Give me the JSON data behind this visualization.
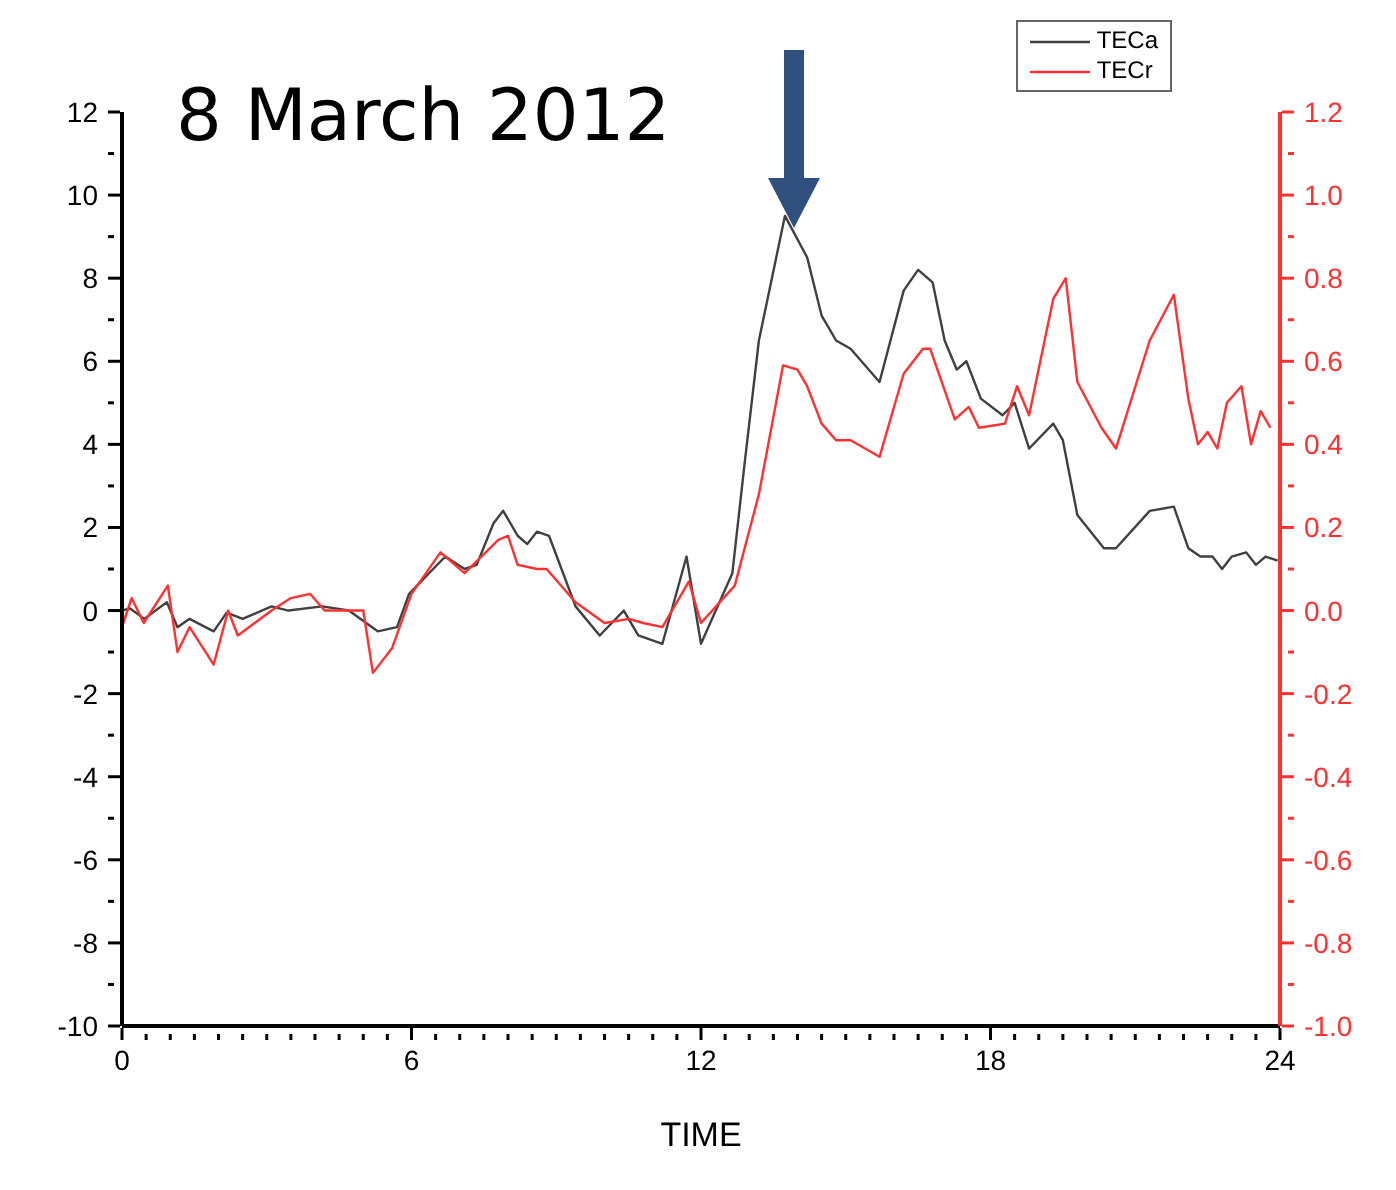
{
  "chart_data": {
    "type": "line",
    "title": "8 March 2012",
    "xlabel": "TIME",
    "xlim": [
      0,
      24
    ],
    "xticks": [
      0,
      {
        "value": 0.5,
        "label": null
      },
      {
        "value": 1,
        "label": null
      },
      {
        "value": 1.5,
        "label": null
      },
      {
        "value": 2,
        "label": null
      },
      {
        "value": 2.5,
        "label": null
      },
      {
        "value": 3,
        "label": null
      },
      {
        "value": 3.5,
        "label": null
      },
      {
        "value": 4,
        "label": null
      },
      {
        "value": 4.5,
        "label": null
      },
      {
        "value": 5,
        "label": null
      },
      {
        "value": 5.5,
        "label": null
      },
      6,
      {
        "value": 6.5,
        "label": null
      },
      {
        "value": 7,
        "label": null
      },
      {
        "value": 7.5,
        "label": null
      },
      {
        "value": 8,
        "label": null
      },
      {
        "value": 8.5,
        "label": null
      },
      {
        "value": 9,
        "label": null
      },
      {
        "value": 9.5,
        "label": null
      },
      {
        "value": 10,
        "label": null
      },
      {
        "value": 10.5,
        "label": null
      },
      {
        "value": 11,
        "label": null
      },
      {
        "value": 11.5,
        "label": null
      },
      12,
      {
        "value": 12.5,
        "label": null
      },
      {
        "value": 13,
        "label": null
      },
      {
        "value": 13.5,
        "label": null
      },
      {
        "value": 14,
        "label": null
      },
      {
        "value": 14.5,
        "label": null
      },
      {
        "value": 15,
        "label": null
      },
      {
        "value": 15.5,
        "label": null
      },
      {
        "value": 16,
        "label": null
      },
      {
        "value": 16.5,
        "label": null
      },
      {
        "value": 17,
        "label": null
      },
      {
        "value": 17.5,
        "label": null
      },
      18,
      {
        "value": 18.5,
        "label": null
      },
      {
        "value": 19,
        "label": null
      },
      {
        "value": 19.5,
        "label": null
      },
      {
        "value": 20,
        "label": null
      },
      {
        "value": 20.5,
        "label": null
      },
      {
        "value": 21,
        "label": null
      },
      {
        "value": 21.5,
        "label": null
      },
      {
        "value": 22,
        "label": null
      },
      {
        "value": 22.5,
        "label": null
      },
      {
        "value": 23,
        "label": null
      },
      {
        "value": 23.5,
        "label": null
      },
      24
    ],
    "ylim": [
      -10,
      12
    ],
    "yticks": [
      -10,
      {
        "value": -9,
        "label": null
      },
      -8,
      {
        "value": -7,
        "label": null
      },
      -6,
      {
        "value": -5,
        "label": null
      },
      -4,
      {
        "value": -3,
        "label": null
      },
      -2,
      {
        "value": -1,
        "label": null
      },
      0,
      {
        "value": 1,
        "label": null
      },
      2,
      {
        "value": 3,
        "label": null
      },
      4,
      {
        "value": 5,
        "label": null
      },
      6,
      {
        "value": 7,
        "label": null
      },
      8,
      {
        "value": 9,
        "label": null
      },
      10,
      {
        "value": 11,
        "label": null
      },
      12
    ],
    "y2lim": [
      -1.0,
      1.2
    ],
    "y2ticks": [
      {
        "value": -1,
        "label": "-1.0"
      },
      {
        "value": -0.9,
        "label": null
      },
      -0.8,
      {
        "value": -0.7,
        "label": null
      },
      -0.6,
      {
        "value": -0.5,
        "label": null
      },
      -0.4,
      {
        "value": -0.3,
        "label": null
      },
      -0.2,
      {
        "value": -0.1,
        "label": null
      },
      {
        "value": 0,
        "label": "0.0"
      },
      {
        "value": 0.1,
        "label": null
      },
      0.2,
      {
        "value": 0.3,
        "label": null
      },
      0.4,
      {
        "value": 0.5,
        "label": null
      },
      0.6,
      {
        "value": 0.7,
        "label": null
      },
      0.8,
      {
        "value": 0.9,
        "label": null
      },
      {
        "value": 1,
        "label": "1.0"
      },
      {
        "value": 1.1,
        "label": null
      },
      1.2
    ],
    "legend": "top right",
    "marker": "none",
    "line_style": "solid",
    "series": [
      {
        "name": "TECa",
        "color": "#404040",
        "x": [
          0,
          0.17,
          0.46,
          0.93,
          1.15,
          1.4,
          1.9,
          2.17,
          2.5,
          3.1,
          3.45,
          4.15,
          4.7,
          5.3,
          5.7,
          5.95,
          6.7,
          7.1,
          7.35,
          7.7,
          7.9,
          8.2,
          8.4,
          8.6,
          8.85,
          9.4,
          9.9,
          10.4,
          10.7,
          11.2,
          11.7,
          12.0,
          12.65,
          12.9,
          13.2,
          13.74,
          14.2,
          14.5,
          14.8,
          15.1,
          15.7,
          16.2,
          16.5,
          16.8,
          17.05,
          17.3,
          17.5,
          17.8,
          18.25,
          18.5,
          18.8,
          19.3,
          19.5,
          19.8,
          20.35,
          20.6,
          21.3,
          21.8,
          22.1,
          22.35,
          22.6,
          22.8,
          23.0,
          23.3,
          23.5,
          23.7,
          23.95
        ],
        "values": [
          0,
          0.05,
          -0.2,
          0.2,
          -0.4,
          -0.2,
          -0.5,
          -0.05,
          -0.2,
          0.1,
          0,
          0.1,
          0,
          -0.5,
          -0.4,
          0.4,
          1.3,
          1.0,
          1.1,
          2.1,
          2.4,
          1.8,
          1.6,
          1.9,
          1.8,
          0.1,
          -0.6,
          0,
          -0.6,
          -0.8,
          1.3,
          -0.8,
          0.9,
          3.5,
          6.5,
          9.5,
          8.5,
          7.1,
          6.5,
          6.3,
          5.5,
          7.7,
          8.2,
          7.9,
          6.5,
          5.8,
          6.0,
          5.1,
          4.7,
          5.0,
          3.9,
          4.5,
          4.1,
          2.3,
          1.5,
          1.5,
          2.4,
          2.5,
          1.5,
          1.3,
          1.3,
          1.0,
          1.3,
          1.4,
          1.1,
          1.3,
          1.2
        ]
      },
      {
        "name": "TECr",
        "color": "#ff3030",
        "axis": "y2",
        "x": [
          0,
          0.2,
          0.45,
          0.95,
          1.15,
          1.4,
          1.9,
          2.2,
          2.4,
          3.1,
          3.5,
          3.9,
          4.2,
          5.0,
          5.2,
          5.6,
          6.0,
          6.6,
          7.1,
          7.8,
          8.0,
          8.2,
          8.6,
          8.8,
          9.4,
          10.0,
          10.5,
          10.8,
          11.2,
          11.75,
          12.0,
          12.7,
          13.2,
          13.7,
          14.0,
          14.2,
          14.5,
          14.8,
          15.1,
          15.7,
          16.2,
          16.6,
          16.75,
          17.26,
          17.55,
          17.76,
          18.3,
          18.55,
          18.8,
          19.3,
          19.56,
          19.8,
          20.3,
          20.6,
          21.3,
          21.8,
          22.1,
          22.3,
          22.5,
          22.7,
          22.9,
          23.2,
          23.4,
          23.6,
          23.8
        ],
        "values": [
          -0.04,
          0.03,
          -0.03,
          0.06,
          -0.1,
          -0.04,
          -0.13,
          0,
          -0.06,
          0,
          0.03,
          0.04,
          0,
          0,
          -0.15,
          -0.09,
          0.04,
          0.14,
          0.09,
          0.17,
          0.18,
          0.11,
          0.1,
          0.1,
          0.02,
          -0.03,
          -0.02,
          -0.03,
          -0.04,
          0.07,
          -0.03,
          0.06,
          0.28,
          0.59,
          0.58,
          0.54,
          0.45,
          0.41,
          0.41,
          0.37,
          0.57,
          0.63,
          0.63,
          0.46,
          0.49,
          0.44,
          0.45,
          0.54,
          0.47,
          0.75,
          0.8,
          0.55,
          0.44,
          0.39,
          0.65,
          0.76,
          0.51,
          0.4,
          0.43,
          0.39,
          0.5,
          0.54,
          0.4,
          0.48,
          0.44
        ]
      }
    ]
  }
}
